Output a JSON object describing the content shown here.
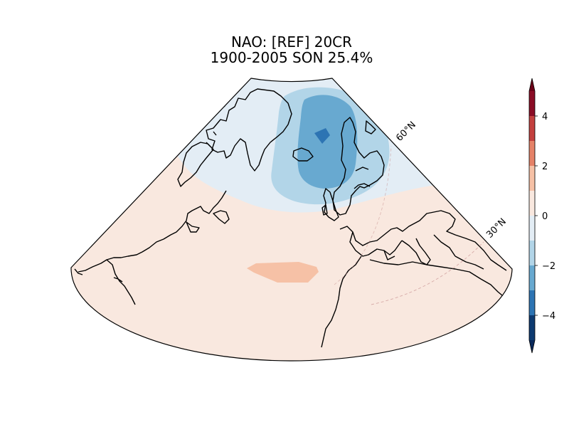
{
  "chart_data": {
    "type": "heatmap",
    "map_type": "filled contour map, conic projection, North Atlantic",
    "title_line1": "NAO: [REF] 20CR",
    "title_line2": "1900-2005 SON 25.4%",
    "latitude_labels": [
      "60°N",
      "30°N"
    ],
    "colorbar": {
      "ticks": [
        4,
        2,
        0,
        -2,
        -4
      ],
      "tick_labels": [
        "4",
        "2",
        "0",
        "−2",
        "−4"
      ],
      "range": [
        -5,
        5
      ],
      "extend": "both",
      "levels": [
        -5,
        -4,
        -3,
        -2,
        -1,
        0,
        1,
        2,
        3,
        4,
        5
      ],
      "colors": [
        "#0d3a70",
        "#2d74b3",
        "#68a9d0",
        "#b2d5e8",
        "#e3edf5",
        "#f9e8df",
        "#f6c1a6",
        "#e58268",
        "#c3403e",
        "#8a0c25"
      ],
      "extend_low_color": "#08285a",
      "extend_high_color": "#6a0018"
    },
    "fields": [
      {
        "region": "background (most of domain)",
        "value_range": [
          0,
          1
        ],
        "color": "#f9e8df"
      },
      {
        "region": "high latitudes around Iceland/Greenland",
        "value_range": [
          -1,
          0
        ],
        "color": "#e3edf5"
      },
      {
        "region": "Iceland region",
        "value_range": [
          -2,
          -1
        ],
        "color": "#b2d5e8"
      },
      {
        "region": "east of Greenland",
        "value_range": [
          -3,
          -2
        ],
        "color": "#68a9d0"
      },
      {
        "region": "center of low",
        "value_range": [
          -4,
          -3
        ],
        "color": "#2d74b3"
      },
      {
        "region": "subtropical Atlantic",
        "value_range": [
          1,
          2
        ],
        "color": "#f6c1a6"
      }
    ]
  }
}
